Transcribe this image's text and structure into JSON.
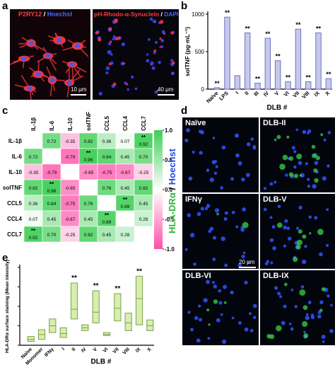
{
  "panel_a": {
    "label": "a",
    "left_title_1": "P2RY12",
    "left_title_sep": " / ",
    "left_title_2": "Hoechst",
    "right_title_1": "pH-Rhodo-α-Synuclein",
    "right_title_sep": " / ",
    "right_title_2": "DAPI",
    "left_scale": "10 μm",
    "right_scale": "40 μm",
    "colors": {
      "red": "#ff3b3b",
      "blue": "#3a52ff"
    }
  },
  "panel_b": {
    "label": "b"
  },
  "panel_c": {
    "label": "c"
  },
  "panel_d": {
    "label": "d",
    "side_label_1": "HLA-DRα",
    "side_label_sep": " / ",
    "side_label_2": "Hoechst",
    "tiles": [
      "Naïve",
      "DLB-II",
      "IFNγ",
      "DLB-V",
      "DLB-VI",
      "DLB-IX"
    ],
    "scale": "20 μm",
    "colors": {
      "green": "#39d34a",
      "blue": "#2f55ff"
    }
  },
  "panel_e": {
    "label": "e"
  },
  "chart_data": [
    {
      "id": "b",
      "type": "bar",
      "categories": [
        "Naïve",
        "LPS",
        "I",
        "II",
        "III",
        "IV",
        "V",
        "VI",
        "VII",
        "VIII",
        "IX",
        "X"
      ],
      "values": [
        20,
        960,
        180,
        750,
        80,
        680,
        380,
        100,
        800,
        100,
        750,
        140
      ],
      "significance": [
        "**",
        "**",
        "",
        "**",
        "**",
        "**",
        "**",
        "**",
        "**",
        "**",
        "**",
        "**"
      ],
      "xlabel": "DLB #",
      "ylabel": "solTNF (pg·mL⁻¹)",
      "ylim": [
        0,
        1000
      ],
      "yticks": [
        0,
        500,
        1000
      ],
      "bar_color": "#c7c9ec",
      "bar_edge": "#6f73c4"
    },
    {
      "id": "c",
      "type": "heatmap",
      "rows": [
        "IL-1β",
        "IL-6",
        "IL-10",
        "solTNF",
        "CCL5",
        "CCL4",
        "CCL7"
      ],
      "cols": [
        "IL-1β",
        "IL-6",
        "IL-10",
        "solTNF",
        "CCL5",
        "CCL4",
        "CCL7"
      ],
      "values": [
        [
          null,
          0.72,
          -0.35,
          0.82,
          0.36,
          0.07,
          0.92
        ],
        [
          0.72,
          null,
          -0.79,
          0.96,
          0.84,
          0.45,
          0.7
        ],
        [
          -0.35,
          -0.79,
          null,
          -0.65,
          -0.75,
          -0.67,
          -0.25
        ],
        [
          0.82,
          0.96,
          -0.65,
          null,
          0.76,
          0.45,
          0.82
        ],
        [
          0.36,
          0.84,
          -0.75,
          0.76,
          null,
          0.89,
          0.45
        ],
        [
          0.07,
          0.45,
          -0.67,
          0.45,
          0.89,
          null,
          0.28
        ],
        [
          0.92,
          0.7,
          -0.25,
          0.82,
          0.45,
          0.28,
          null
        ]
      ],
      "stars": [
        [
          null,
          "",
          "",
          "",
          "",
          "",
          "**"
        ],
        [
          "",
          null,
          "",
          "**",
          "",
          "",
          ""
        ],
        [
          "",
          "",
          null,
          "",
          "",
          "",
          ""
        ],
        [
          "",
          "**",
          "",
          null,
          "",
          "",
          ""
        ],
        [
          "",
          "",
          "",
          "",
          null,
          "**",
          ""
        ],
        [
          "",
          "",
          "",
          "",
          "**",
          null,
          ""
        ],
        [
          "**",
          "",
          "",
          "",
          "",
          "",
          null
        ]
      ],
      "colorbar_ticks": [
        "1.0",
        "0.5",
        "0.0",
        "-0.5",
        "-1.0"
      ],
      "colorbar_range": [
        -1,
        1
      ],
      "colors": {
        "pos": "#3fcf57",
        "neg": "#ff4fa8",
        "mid": "#ffffff"
      }
    },
    {
      "id": "e",
      "type": "floating-bar",
      "categories": [
        "Naïve",
        "Monomer",
        "IFNγ",
        "I",
        "II",
        "IV",
        "V",
        "VI",
        "VII",
        "VIII",
        "IX",
        "X"
      ],
      "ranges": [
        [
          0.4,
          0.9
        ],
        [
          0.6,
          1.6
        ],
        [
          1.3,
          2.7
        ],
        [
          0.8,
          1.8
        ],
        [
          2.7,
          6.4
        ],
        [
          1.5,
          2.1
        ],
        [
          2.3,
          5.6
        ],
        [
          1.0,
          1.3
        ],
        [
          2.5,
          5.3
        ],
        [
          1.5,
          3.3
        ],
        [
          2.1,
          7.1
        ],
        [
          1.5,
          2.6
        ]
      ],
      "medians": [
        0.6,
        1.1,
        2.0,
        1.2,
        3.7,
        1.8,
        3.4,
        1.1,
        3.8,
        2.3,
        4.8,
        2.0
      ],
      "significance": [
        "",
        "",
        "",
        "",
        "**",
        "",
        "**",
        "",
        "**",
        "",
        "**",
        ""
      ],
      "xlabel": "DLB #",
      "ylabel": "HLA-DRα surface staining (Mean intensity)",
      "ylim": [
        0,
        8
      ],
      "yticks": [
        0,
        2,
        4,
        6,
        8
      ],
      "box_color": "#d6eeb0",
      "box_edge": "#7fa14a"
    }
  ]
}
